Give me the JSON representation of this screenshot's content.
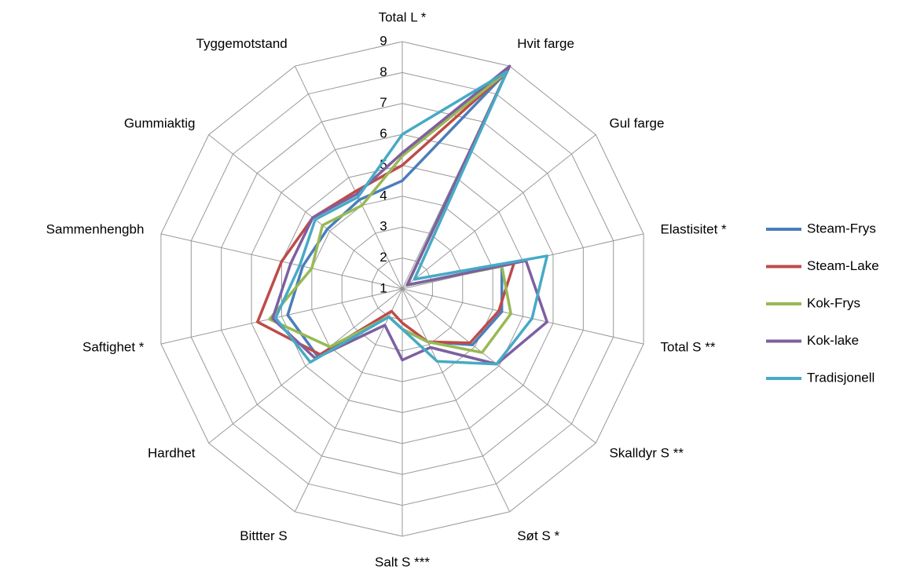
{
  "chart_data": {
    "type": "radar",
    "categories": [
      "Total L *",
      "Hvit farge",
      "Gul farge",
      "Elastisitet *",
      "Total S **",
      "Skalldyr S **",
      "Søt S *",
      "Salt  S ***",
      "Bittter S",
      "Hardhet",
      "Saftighet *",
      "Sammenhengbh",
      "Gummiaktig",
      "Tyggemotstand"
    ],
    "series": [
      {
        "name": "Steam-Frys",
        "color": "#4a7ebb",
        "values": [
          4.5,
          8.8,
          1.2,
          4.3,
          4.3,
          3.9,
          2.9,
          2.3,
          2.0,
          4.5,
          4.8,
          4.3,
          4.1,
          4.2
        ]
      },
      {
        "name": "Steam-Lake",
        "color": "#be4b48",
        "values": [
          5.0,
          8.8,
          1.2,
          4.7,
          4.2,
          3.8,
          2.9,
          2.1,
          1.8,
          4.4,
          5.8,
          5.0,
          4.7,
          4.5
        ]
      },
      {
        "name": "Kok-Frys",
        "color": "#98b954",
        "values": [
          5.3,
          8.8,
          1.2,
          4.3,
          4.6,
          4.3,
          2.9,
          2.3,
          2.0,
          4.0,
          5.4,
          4.0,
          4.3,
          4.0
        ]
      },
      {
        "name": "Kok-lake",
        "color": "#7d60a0",
        "values": [
          5.4,
          9.0,
          1.2,
          5.1,
          5.8,
          4.9,
          3.1,
          3.3,
          2.3,
          4.6,
          5.3,
          4.7,
          4.7,
          4.4
        ]
      },
      {
        "name": "Tradisjonell",
        "color": "#46aac5",
        "values": [
          6.0,
          8.8,
          1.5,
          5.8,
          5.3,
          4.9,
          3.6,
          2.3,
          2.0,
          4.8,
          5.2,
          4.4,
          4.6,
          4.3
        ]
      }
    ],
    "ylim": [
      1,
      9
    ],
    "yticks": [
      1,
      2,
      3,
      4,
      5,
      6,
      7,
      8,
      9
    ],
    "grid": true,
    "legend": "right"
  }
}
